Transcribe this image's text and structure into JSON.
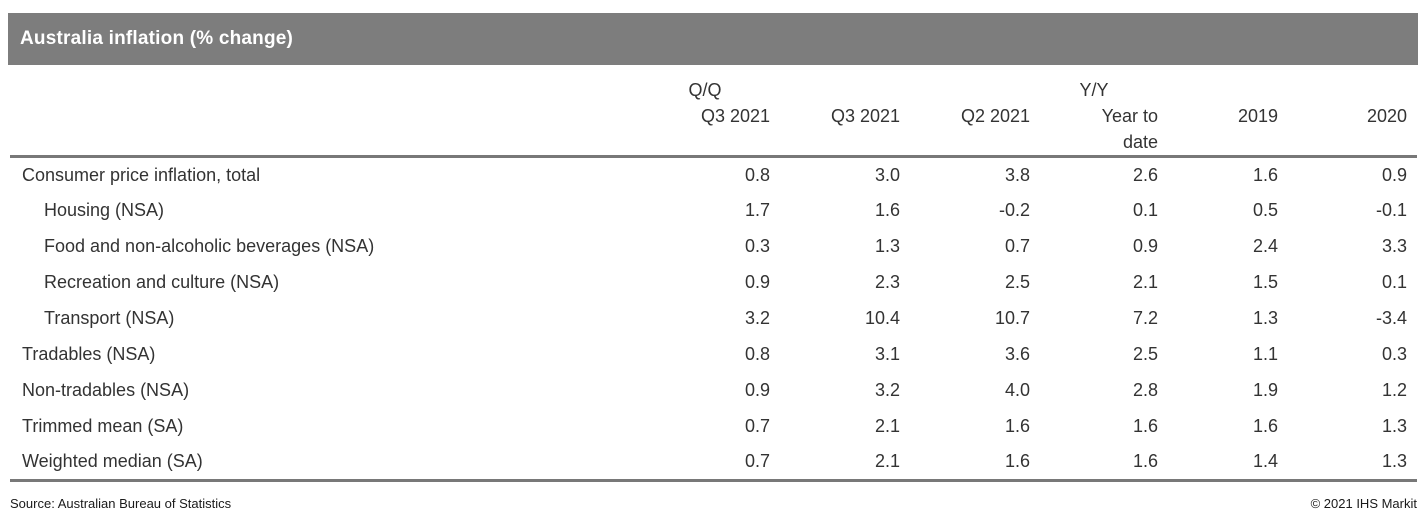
{
  "chart_data": {
    "type": "table",
    "title": "Australia inflation (% change)",
    "columns": [
      {
        "group": "Q/Q",
        "label": "Q3 2021"
      },
      {
        "group": "",
        "label": "Q3 2021"
      },
      {
        "group": "",
        "label": "Q2 2021"
      },
      {
        "group": "Y/Y",
        "label": "Year to\ndate"
      },
      {
        "group": "",
        "label": "2019"
      },
      {
        "group": "",
        "label": "2020"
      }
    ],
    "rows": [
      {
        "label": "Consumer price inflation, total",
        "indent": false,
        "values": [
          "0.8",
          "3.0",
          "3.8",
          "2.6",
          "1.6",
          "0.9"
        ]
      },
      {
        "label": "Housing (NSA)",
        "indent": true,
        "values": [
          "1.7",
          "1.6",
          "-0.2",
          "0.1",
          "0.5",
          "-0.1"
        ]
      },
      {
        "label": "Food and non-alcoholic beverages (NSA)",
        "indent": true,
        "values": [
          "0.3",
          "1.3",
          "0.7",
          "0.9",
          "2.4",
          "3.3"
        ]
      },
      {
        "label": "Recreation and culture (NSA)",
        "indent": true,
        "values": [
          "0.9",
          "2.3",
          "2.5",
          "2.1",
          "1.5",
          "0.1"
        ]
      },
      {
        "label": "Transport (NSA)",
        "indent": true,
        "values": [
          "3.2",
          "10.4",
          "10.7",
          "7.2",
          "1.3",
          "-3.4"
        ]
      },
      {
        "label": "Tradables (NSA)",
        "indent": false,
        "values": [
          "0.8",
          "3.1",
          "3.6",
          "2.5",
          "1.1",
          "0.3"
        ]
      },
      {
        "label": "Non-tradables (NSA)",
        "indent": false,
        "values": [
          "0.9",
          "3.2",
          "4.0",
          "2.8",
          "1.9",
          "1.2"
        ]
      },
      {
        "label": "Trimmed mean (SA)",
        "indent": false,
        "values": [
          "0.7",
          "2.1",
          "1.6",
          "1.6",
          "1.6",
          "1.3"
        ]
      },
      {
        "label": "Weighted median (SA)",
        "indent": false,
        "values": [
          "0.7",
          "2.1",
          "1.6",
          "1.6",
          "1.4",
          "1.3"
        ]
      }
    ]
  },
  "footer": {
    "source": "Source: Australian Bureau of Statistics",
    "copyright": "© 2021 IHS Markit"
  },
  "colors": {
    "header_bar": "#7d7d7d",
    "rule": "#787878",
    "text": "#333333"
  }
}
